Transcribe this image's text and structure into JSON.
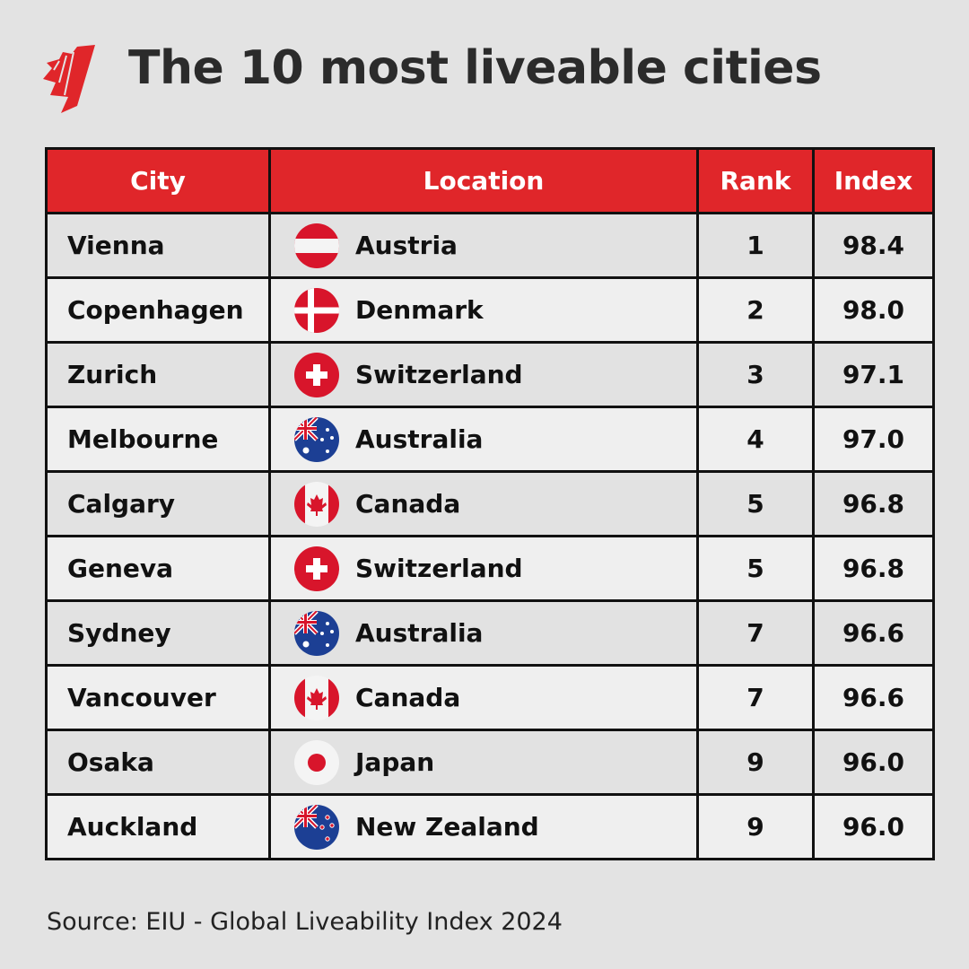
{
  "header": {
    "logo_text": "SBS",
    "title": "The 10 most liveable cities"
  },
  "colors": {
    "accent": "#e0262a",
    "background": "#e3e3e3",
    "row_odd": "#e2e2e2",
    "row_even": "#efefef"
  },
  "chart_data": {
    "type": "table",
    "title": "The 10 most liveable cities",
    "columns": [
      "City",
      "Location",
      "Rank",
      "Index"
    ],
    "rows": [
      {
        "city": "Vienna",
        "location": "Austria",
        "flag": "austria-flag",
        "rank": "1",
        "index": "98.4"
      },
      {
        "city": "Copenhagen",
        "location": "Denmark",
        "flag": "denmark-flag",
        "rank": "2",
        "index": "98.0"
      },
      {
        "city": "Zurich",
        "location": "Switzerland",
        "flag": "switzerland-flag",
        "rank": "3",
        "index": "97.1"
      },
      {
        "city": "Melbourne",
        "location": "Australia",
        "flag": "australia-flag",
        "rank": "4",
        "index": "97.0"
      },
      {
        "city": "Calgary",
        "location": "Canada",
        "flag": "canada-flag",
        "rank": "5",
        "index": "96.8"
      },
      {
        "city": "Geneva",
        "location": "Switzerland",
        "flag": "switzerland-flag",
        "rank": "5",
        "index": "96.8"
      },
      {
        "city": "Sydney",
        "location": "Australia",
        "flag": "australia-flag",
        "rank": "7",
        "index": "96.6"
      },
      {
        "city": "Vancouver",
        "location": "Canada",
        "flag": "canada-flag",
        "rank": "7",
        "index": "96.6"
      },
      {
        "city": "Osaka",
        "location": "Japan",
        "flag": "japan-flag",
        "rank": "9",
        "index": "96.0"
      },
      {
        "city": "Auckland",
        "location": "New Zealand",
        "flag": "new-zealand-flag",
        "rank": "9",
        "index": "96.0"
      }
    ]
  },
  "footer": {
    "source": "Source: EIU - Global Liveability Index 2024"
  }
}
